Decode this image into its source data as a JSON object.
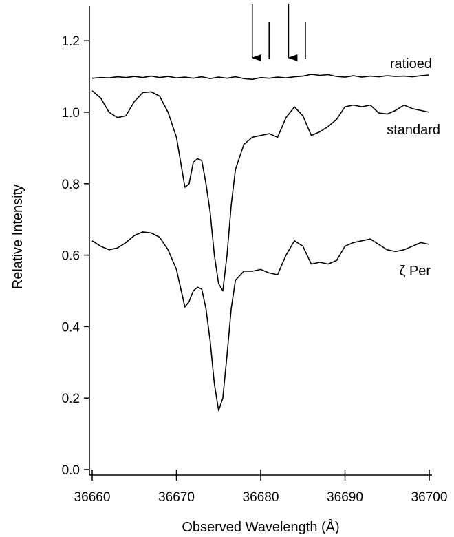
{
  "chart_data": {
    "type": "line",
    "title": "",
    "xlabel": "Observed Wavelength (Å)",
    "ylabel": "Relative Intensity",
    "xlim": [
      36660,
      36700
    ],
    "ylim": [
      0.0,
      1.3
    ],
    "x_ticks": [
      36660,
      36670,
      36680,
      36690,
      36700
    ],
    "x_tick_labels": [
      "36660",
      "36670",
      "36680",
      "36690",
      "36700"
    ],
    "y_ticks": [
      0.0,
      0.2,
      0.4,
      0.6,
      0.8,
      1.0,
      1.2
    ],
    "y_tick_labels": [
      "0.0",
      "0.2",
      "0.4",
      "0.6",
      "0.8",
      "1.0",
      "1.2"
    ],
    "grid": false,
    "legend": "none",
    "series": [
      {
        "name": "ratioed",
        "x": [
          36660,
          36661,
          36662,
          36663,
          36664,
          36665,
          36666,
          36667,
          36668,
          36669,
          36670,
          36671,
          36672,
          36673,
          36674,
          36675,
          36676,
          36677,
          36678,
          36679,
          36680,
          36681,
          36682,
          36683,
          36684,
          36685,
          36686,
          36687,
          36688,
          36689,
          36690,
          36691,
          36692,
          36693,
          36694,
          36695,
          36696,
          36697,
          36698,
          36699,
          36700
        ],
        "y": [
          1.095,
          1.097,
          1.096,
          1.099,
          1.097,
          1.1,
          1.097,
          1.101,
          1.097,
          1.1,
          1.096,
          1.098,
          1.095,
          1.099,
          1.094,
          1.098,
          1.095,
          1.099,
          1.094,
          1.092,
          1.097,
          1.095,
          1.098,
          1.096,
          1.099,
          1.101,
          1.106,
          1.103,
          1.105,
          1.1,
          1.098,
          1.102,
          1.098,
          1.101,
          1.099,
          1.102,
          1.1,
          1.101,
          1.099,
          1.102,
          1.104
        ]
      },
      {
        "name": "standard",
        "x": [
          36660,
          36661,
          36662,
          36663,
          36664,
          36665,
          36666,
          36667,
          36668,
          36669,
          36670,
          36671,
          36671.5,
          36672,
          36672.5,
          36673,
          36673.5,
          36674,
          36674.5,
          36675,
          36675.5,
          36676,
          36676.5,
          36677,
          36678,
          36679,
          36680,
          36681,
          36682,
          36683,
          36684,
          36685,
          36686,
          36687,
          36688,
          36689,
          36690,
          36691,
          36692,
          36693,
          36694,
          36695,
          36696,
          36697,
          36698,
          36699,
          36700
        ],
        "y": [
          1.06,
          1.04,
          1.0,
          0.985,
          0.99,
          1.03,
          1.055,
          1.057,
          1.045,
          1.0,
          0.93,
          0.79,
          0.8,
          0.86,
          0.87,
          0.865,
          0.8,
          0.72,
          0.6,
          0.52,
          0.5,
          0.6,
          0.74,
          0.84,
          0.91,
          0.93,
          0.935,
          0.94,
          0.93,
          0.985,
          1.015,
          0.99,
          0.935,
          0.945,
          0.96,
          0.98,
          1.015,
          1.02,
          1.015,
          1.02,
          0.998,
          0.995,
          1.005,
          1.02,
          1.01,
          1.005,
          1.0
        ]
      },
      {
        "name": "ζ Per",
        "x": [
          36660,
          36661,
          36662,
          36663,
          36664,
          36665,
          36666,
          36667,
          36668,
          36669,
          36670,
          36671,
          36671.5,
          36672,
          36672.5,
          36673,
          36673.5,
          36674,
          36674.5,
          36675,
          36675.5,
          36676,
          36676.5,
          36677,
          36678,
          36679,
          36680,
          36681,
          36682,
          36683,
          36684,
          36685,
          36686,
          36687,
          36688,
          36689,
          36690,
          36691,
          36692,
          36693,
          36694,
          36695,
          36696,
          36697,
          36698,
          36699,
          36700
        ],
        "y": [
          0.64,
          0.625,
          0.615,
          0.62,
          0.635,
          0.655,
          0.665,
          0.662,
          0.65,
          0.615,
          0.56,
          0.455,
          0.47,
          0.5,
          0.51,
          0.505,
          0.45,
          0.36,
          0.24,
          0.165,
          0.2,
          0.32,
          0.45,
          0.53,
          0.555,
          0.555,
          0.56,
          0.55,
          0.545,
          0.6,
          0.64,
          0.625,
          0.575,
          0.58,
          0.575,
          0.585,
          0.625,
          0.635,
          0.64,
          0.645,
          0.63,
          0.615,
          0.61,
          0.615,
          0.625,
          0.635,
          0.63
        ]
      }
    ],
    "annotations": {
      "arrow_markers_x": [
        36679,
        36683.3
      ],
      "line_markers_x": [
        36681,
        36685.3
      ]
    }
  }
}
